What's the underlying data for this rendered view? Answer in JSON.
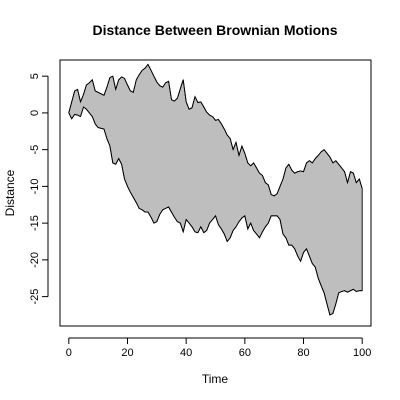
{
  "chart_data": {
    "type": "area",
    "title": "Distance Between Brownian Motions",
    "xlabel": "Time",
    "ylabel": "Distance",
    "xlim": [
      -3,
      103
    ],
    "ylim": [
      -29,
      7.2
    ],
    "xticks": [
      0,
      20,
      40,
      60,
      80,
      100
    ],
    "yticks": [
      5,
      0,
      -5,
      -10,
      -15,
      -20,
      -25
    ],
    "grid": false,
    "legend": "none",
    "fill_color": "#bebebe",
    "line_color": "#000000",
    "x": [
      0,
      1,
      2,
      3,
      4,
      5,
      6,
      7,
      8,
      9,
      10,
      11,
      12,
      13,
      14,
      15,
      16,
      17,
      18,
      19,
      20,
      21,
      22,
      23,
      24,
      25,
      26,
      27,
      28,
      29,
      30,
      31,
      32,
      33,
      34,
      35,
      36,
      37,
      38,
      39,
      40,
      41,
      42,
      43,
      44,
      45,
      46,
      47,
      48,
      49,
      50,
      51,
      52,
      53,
      54,
      55,
      56,
      57,
      58,
      59,
      60,
      61,
      62,
      63,
      64,
      65,
      66,
      67,
      68,
      69,
      70,
      71,
      72,
      73,
      74,
      75,
      76,
      77,
      78,
      79,
      80,
      81,
      82,
      83,
      84,
      85,
      86,
      87,
      88,
      89,
      90,
      91,
      92,
      93,
      94,
      95,
      96,
      97,
      98,
      99,
      100
    ],
    "upper": [
      0,
      1.5,
      3,
      3.2,
      1.5,
      2.5,
      3.8,
      4.1,
      4.5,
      3,
      2.8,
      2.6,
      2.4,
      3.5,
      4.8,
      5,
      3.2,
      4.5,
      4.9,
      4.7,
      3.8,
      3,
      2.8,
      4.5,
      5.2,
      5.8,
      6.1,
      6.6,
      5.8,
      5,
      4.2,
      3.7,
      3.5,
      4.1,
      4.3,
      1.8,
      1.6,
      2,
      3.3,
      4.5,
      1.5,
      0.5,
      0.7,
      2.2,
      1.4,
      1.5,
      0.8,
      0.1,
      -0.3,
      -0.5,
      -1,
      -0.9,
      -1.5,
      -2.2,
      -3,
      -3.5,
      -5,
      -4,
      -5.8,
      -4.5,
      -5.5,
      -6.8,
      -7.2,
      -6.8,
      -7.5,
      -8.2,
      -8.5,
      -9.5,
      -9.8,
      -11.1,
      -11.3,
      -11,
      -10,
      -9,
      -7.5,
      -7,
      -7.8,
      -8.2,
      -8,
      -7.9,
      -8,
      -6.8,
      -6.5,
      -6.8,
      -6.2,
      -5.8,
      -5.3,
      -5,
      -5.5,
      -6,
      -6.8,
      -6.5,
      -7,
      -7.5,
      -8,
      -9.5,
      -8,
      -8.2,
      -9.5,
      -9,
      -10.3
    ],
    "lower": [
      0,
      -0.8,
      -0.2,
      -0.3,
      -0.5,
      0.8,
      0.5,
      0,
      -0.5,
      -1.5,
      -2,
      -2.1,
      -2.2,
      -3.5,
      -4.5,
      -6.8,
      -7,
      -6.2,
      -7,
      -9,
      -10,
      -10.8,
      -11.5,
      -12.2,
      -13,
      -13.2,
      -13.5,
      -13.5,
      -14.2,
      -15,
      -14.8,
      -13.8,
      -13.2,
      -13,
      -12.8,
      -13.5,
      -14.2,
      -14.8,
      -15,
      -16.2,
      -14.5,
      -15,
      -15.5,
      -16.2,
      -16.3,
      -15.5,
      -16.3,
      -16,
      -15,
      -14.5,
      -14,
      -15.2,
      -15.8,
      -16.5,
      -17.5,
      -17,
      -16,
      -15.5,
      -14.8,
      -14.3,
      -14,
      -15.8,
      -15,
      -16,
      -16.5,
      -17,
      -16.2,
      -15.5,
      -15,
      -14,
      -14,
      -14,
      -14.5,
      -16.5,
      -17,
      -18,
      -18,
      -18.5,
      -19.5,
      -20.2,
      -19,
      -18.5,
      -19.5,
      -20.5,
      -21,
      -22.5,
      -23.5,
      -24.5,
      -26,
      -27.5,
      -27.3,
      -26,
      -24.5,
      -24.3,
      -24.2,
      -24.4,
      -24.2,
      -24,
      -24.3,
      -24.2,
      -24.2
    ]
  }
}
